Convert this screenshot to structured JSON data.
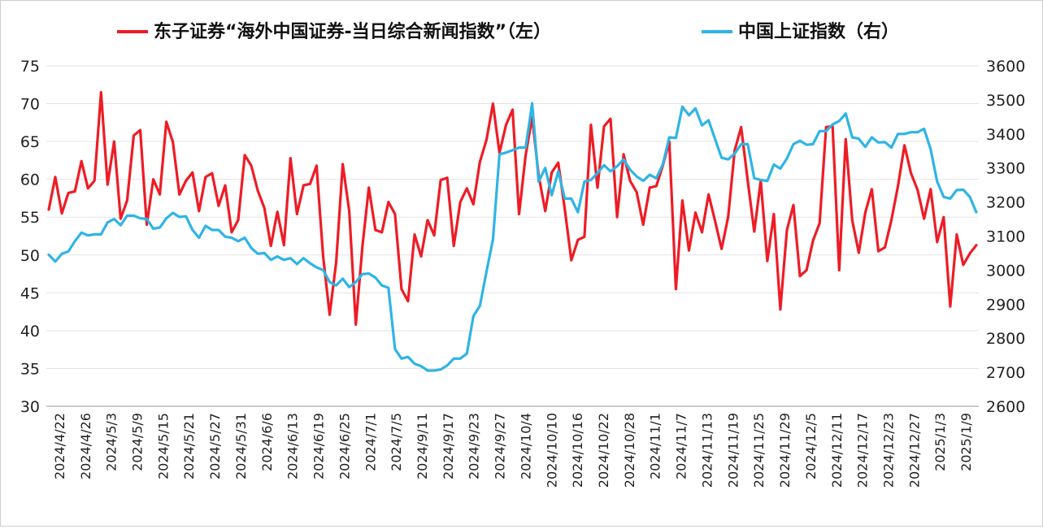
{
  "chart_data": {
    "type": "line",
    "title": "",
    "legend": {
      "placement": "top",
      "entries": [
        {
          "label": "东子证券“海外中国证券-当日综合新闻指数”（左）",
          "color": "#ee1c25"
        },
        {
          "label": "中国上证指数（右）",
          "color": "#2fb4e6"
        }
      ]
    },
    "grid": true,
    "y_left": {
      "ylim": [
        30,
        75
      ],
      "ticks": [
        "30",
        "35",
        "40",
        "45",
        "50",
        "55",
        "60",
        "65",
        "70",
        "75"
      ]
    },
    "y_right": {
      "ylim": [
        2600,
        3600
      ],
      "ticks": [
        "2600",
        "2700",
        "2800",
        "2900",
        "3000",
        "3100",
        "3200",
        "3300",
        "3400",
        "3500",
        "3600"
      ]
    },
    "x_tick_labels": [
      "2024/4/22",
      "2024/4/26",
      "2024/5/3",
      "2024/5/9",
      "2024/5/15",
      "2024/5/21",
      "2024/5/27",
      "2024/5/31",
      "2024/6/6",
      "2024/6/13",
      "2024/6/19",
      "2024/6/25",
      "2024/7/1",
      "2024/7/5",
      "2024/9/11",
      "2024/9/17",
      "2024/9/23",
      "2024/9/27",
      "2024/10/4",
      "2024/10/10",
      "2024/10/16",
      "2024/10/22",
      "2024/10/28",
      "2024/11/1",
      "2024/11/7",
      "2024/11/13",
      "2024/11/19",
      "2024/11/25",
      "2024/11/29",
      "2024/12/5",
      "2024/12/11",
      "2024/12/17",
      "2024/12/23",
      "2024/12/27",
      "2025/1/3",
      "2025/1/9"
    ],
    "series": [
      {
        "name": "东子证券“海外中国证券-当日综合新闻指数”（左）",
        "axis": "left",
        "color": "#ee1c25",
        "values": [
          56,
          60.3,
          55.5,
          58.2,
          58.4,
          62.4,
          58.8,
          59.8,
          71.5,
          59.3,
          65,
          54.8,
          57.2,
          65.8,
          66.5,
          54,
          60,
          58,
          67.6,
          64.9,
          58,
          59.8,
          60.9,
          55.8,
          60.3,
          60.8,
          56.5,
          59.2,
          53,
          54.6,
          63.2,
          61.8,
          58.5,
          56.2,
          51.2,
          55.7,
          51.3,
          62.8,
          55.4,
          59.2,
          59.4,
          61.8,
          49.8,
          42.1,
          49,
          62,
          55.8,
          40.8,
          51,
          58.9,
          53.3,
          53,
          57,
          55.4,
          45.5,
          43.9,
          52.7,
          49.8,
          54.6,
          52.6,
          59.9,
          60.2,
          51.2,
          57,
          58.8,
          56.7,
          62.3,
          65.2,
          70,
          63.5,
          67.2,
          69.2,
          55.4,
          63.2,
          68.2,
          60.5,
          55.8,
          60.9,
          62.2,
          56,
          49.3,
          52,
          52.4,
          67.2,
          58.9,
          67,
          68,
          55,
          63.3,
          59.8,
          58.3,
          54,
          58.9,
          59.1,
          61.8,
          65,
          45.5,
          57.2,
          50.6,
          55.6,
          53,
          58,
          54.5,
          50.8,
          55,
          63.8,
          66.9,
          59.8,
          53.1,
          59.8,
          49.2,
          55.4,
          42.8,
          53.3,
          56.6,
          47.2,
          48,
          51.9,
          54.2,
          66.9,
          67,
          48,
          65.3,
          54.6,
          50.3,
          55.6,
          58.7,
          50.5,
          51,
          54.6,
          59.1,
          64.5,
          60.8,
          58.6,
          54.8,
          58.7,
          51.7,
          55,
          43.2,
          52.7,
          48.7,
          50.2,
          51.3
        ]
      },
      {
        "name": "中国上证指数（右）",
        "axis": "right",
        "color": "#2fb4e6",
        "values": [
          3045,
          3025,
          3048,
          3055,
          3085,
          3110,
          3102,
          3105,
          3105,
          3140,
          3150,
          3132,
          3160,
          3160,
          3152,
          3150,
          3122,
          3125,
          3152,
          3168,
          3156,
          3158,
          3118,
          3095,
          3130,
          3118,
          3118,
          3098,
          3095,
          3085,
          3095,
          3065,
          3048,
          3050,
          3030,
          3040,
          3030,
          3035,
          3018,
          3035,
          3020,
          3008,
          3000,
          2965,
          2955,
          2975,
          2950,
          2965,
          2988,
          2990,
          2978,
          2955,
          2948,
          2768,
          2740,
          2745,
          2725,
          2718,
          2705,
          2705,
          2708,
          2720,
          2740,
          2740,
          2755,
          2865,
          2895,
          2995,
          3090,
          3340,
          3345,
          3352,
          3360,
          3360,
          3490,
          3260,
          3300,
          3220,
          3290,
          3210,
          3210,
          3170,
          3260,
          3265,
          3285,
          3308,
          3290,
          3305,
          3325,
          3295,
          3275,
          3262,
          3280,
          3270,
          3310,
          3390,
          3388,
          3480,
          3455,
          3475,
          3425,
          3440,
          3385,
          3330,
          3325,
          3342,
          3370,
          3370,
          3270,
          3265,
          3262,
          3310,
          3298,
          3328,
          3370,
          3380,
          3368,
          3370,
          3408,
          3408,
          3428,
          3438,
          3460,
          3390,
          3386,
          3362,
          3390,
          3375,
          3376,
          3360,
          3400,
          3400,
          3405,
          3405,
          3415,
          3355,
          3260,
          3215,
          3210,
          3235,
          3236,
          3215,
          3170
        ]
      }
    ]
  }
}
